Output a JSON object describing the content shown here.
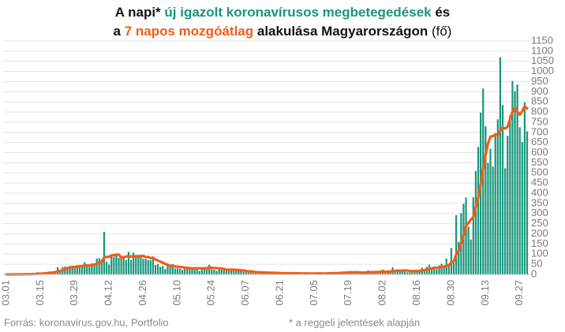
{
  "title_lines": [
    [
      {
        "text": "A napi* "
      },
      {
        "text": "új igazolt koronavírusos megbetegedések",
        "color": "#17967a"
      },
      {
        "text": " és"
      }
    ],
    [
      {
        "text": "a "
      },
      {
        "text": "7 napos mozgóátlag",
        "color": "#f25c19"
      },
      {
        "text": " alakulása Magyarországon"
      },
      {
        "text": " (fő)",
        "bold": false
      }
    ]
  ],
  "source": "Forrás: koronavirus.gov.hu, Portfolio",
  "footnote": "* a reggeli jelentések alapján",
  "chart_data": {
    "type": "bar-line",
    "categories": [
      "03.01",
      null,
      null,
      null,
      null,
      null,
      null,
      null,
      null,
      null,
      null,
      null,
      null,
      null,
      "03.15",
      null,
      null,
      null,
      null,
      null,
      null,
      null,
      null,
      null,
      null,
      null,
      null,
      null,
      "03.29",
      null,
      null,
      null,
      null,
      null,
      null,
      null,
      null,
      null,
      null,
      null,
      null,
      null,
      "04.12",
      null,
      null,
      null,
      null,
      null,
      null,
      null,
      null,
      null,
      null,
      null,
      null,
      null,
      "04.26",
      null,
      null,
      null,
      null,
      null,
      null,
      null,
      null,
      null,
      null,
      null,
      null,
      null,
      "05.10",
      null,
      null,
      null,
      null,
      null,
      null,
      null,
      null,
      null,
      null,
      null,
      null,
      null,
      "05.24",
      null,
      null,
      null,
      null,
      null,
      null,
      null,
      null,
      null,
      null,
      null,
      null,
      null,
      "06.07",
      null,
      null,
      null,
      null,
      null,
      null,
      null,
      null,
      null,
      null,
      null,
      null,
      null,
      "06.21",
      null,
      null,
      null,
      null,
      null,
      null,
      null,
      null,
      null,
      null,
      null,
      null,
      null,
      "07.05",
      null,
      null,
      null,
      null,
      null,
      null,
      null,
      null,
      null,
      null,
      null,
      null,
      null,
      "07.19",
      null,
      null,
      null,
      null,
      null,
      null,
      null,
      null,
      null,
      null,
      null,
      null,
      null,
      "08.02",
      null,
      null,
      null,
      null,
      null,
      null,
      null,
      null,
      null,
      null,
      null,
      null,
      null,
      "08.16",
      null,
      null,
      null,
      null,
      null,
      null,
      null,
      null,
      null,
      null,
      null,
      null,
      null,
      "08.30",
      null,
      null,
      null,
      null,
      null,
      null,
      null,
      null,
      null,
      null,
      null,
      null,
      null,
      "09.13",
      null,
      null,
      null,
      null,
      null,
      null,
      null,
      null,
      null,
      null,
      null,
      null,
      null,
      "09.27",
      null,
      null,
      null
    ],
    "series": [
      {
        "kind": "bar",
        "color": "#17967a",
        "values": [
          0,
          0,
          0,
          2,
          0,
          2,
          3,
          0,
          2,
          1,
          3,
          3,
          6,
          11,
          2,
          7,
          11,
          8,
          15,
          12,
          18,
          36,
          20,
          37,
          39,
          38,
          42,
          43,
          35,
          39,
          45,
          45,
          60,
          46,
          38,
          55,
          48,
          78,
          80,
          75,
          210,
          63,
          49,
          99,
          86,
          100,
          81,
          92,
          88,
          71,
          111,
          72,
          107,
          84,
          96,
          88,
          77,
          76,
          71,
          70,
          89,
          46,
          51,
          37,
          41,
          27,
          44,
          46,
          51,
          29,
          30,
          28,
          23,
          28,
          35,
          38,
          30,
          26,
          35,
          18,
          32,
          36,
          37,
          48,
          25,
          23,
          18,
          26,
          26,
          24,
          18,
          25,
          27,
          17,
          20,
          19,
          16,
          12,
          11,
          15,
          12,
          10,
          7,
          9,
          11,
          6,
          10,
          8,
          8,
          7,
          4,
          6,
          4,
          5,
          6,
          7,
          7,
          6,
          3,
          3,
          4,
          5,
          6,
          7,
          4,
          3,
          3,
          6,
          7,
          4,
          5,
          8,
          6,
          4,
          10,
          8,
          8,
          12,
          13,
          10,
          12,
          12,
          5,
          12,
          8,
          10,
          5,
          16,
          20,
          8,
          11,
          11,
          13,
          14,
          24,
          9,
          16,
          10,
          35,
          13,
          25,
          18,
          17,
          20,
          10,
          11,
          19,
          22,
          23,
          20,
          33,
          19,
          37,
          48,
          25,
          40,
          24,
          44,
          53,
          33,
          78,
          50,
          130,
          60,
          292,
          160,
          302,
          348,
          379,
          236,
          172,
          380,
          510,
          628,
          797,
          916,
          730,
          550,
          620,
          531,
          690,
          764,
          1070,
          835,
          523,
          683,
          782,
          953,
          903,
          936,
          725,
          652,
          848,
          705
        ]
      },
      {
        "kind": "line",
        "color": "#f25c19",
        "values": [
          0,
          0,
          0,
          0.5,
          0.4,
          0.7,
          1,
          1,
          1.3,
          1.4,
          1.6,
          2,
          2.6,
          3.7,
          4,
          4.7,
          6.1,
          6.9,
          8.6,
          9.4,
          10.4,
          15.3,
          17.1,
          20.9,
          25.3,
          28.6,
          32.9,
          36.4,
          36.3,
          39,
          40.1,
          41,
          44.1,
          44.7,
          44,
          46.9,
          48.1,
          52.9,
          57.9,
          60,
          83.4,
          87,
          86.1,
          93.4,
          94.6,
          97.4,
          98.3,
          81.4,
          85,
          88.1,
          89.9,
          87.9,
          88.9,
          89.3,
          89.9,
          89.9,
          90.7,
          85.7,
          85.6,
          80.3,
          81,
          73.9,
          68.6,
          62.9,
          57.9,
          51.6,
          47.9,
          41.7,
          42.4,
          39.3,
          38.3,
          36.4,
          35.9,
          33.6,
          32,
          30.1,
          30.3,
          29.7,
          30.7,
          30,
          30.6,
          30.7,
          30.6,
          33.1,
          33,
          31.3,
          31.3,
          30.4,
          29,
          27.1,
          22.9,
          22.9,
          23.4,
          23.3,
          22.4,
          21.4,
          20.3,
          19.4,
          17.4,
          15.7,
          15,
          13.6,
          11.9,
          10.9,
          10.7,
          10,
          9.3,
          8.7,
          8.4,
          8.4,
          7.7,
          7,
          6.7,
          6,
          5.7,
          5.6,
          5.6,
          5.9,
          5.4,
          5.3,
          5.1,
          5,
          4.9,
          4.9,
          4.6,
          4.6,
          4.6,
          4.9,
          5.1,
          4.9,
          4.6,
          5.1,
          5.6,
          5.7,
          6.3,
          6.4,
          7,
          8,
          8.7,
          9.3,
          10.4,
          10.7,
          10.3,
          10.9,
          10.3,
          9.9,
          9.1,
          9.7,
          10.9,
          11.3,
          11.1,
          11.6,
          12,
          13.3,
          14.4,
          12.9,
          14,
          13.9,
          17.3,
          17.3,
          18.9,
          18,
          19.1,
          19.7,
          19.7,
          16.3,
          17.1,
          16.7,
          17.4,
          17.9,
          19.7,
          21,
          24.7,
          28.9,
          29.3,
          31.7,
          32.3,
          33.9,
          38.7,
          38.1,
          42.4,
          46,
          58.9,
          64,
          99.4,
          114.7,
          153.1,
          191.7,
          238.7,
          253.9,
          269.9,
          282.4,
          332.4,
          379,
          443.1,
          519.9,
          590.4,
          644.4,
          678.7,
          681.7,
          690.6,
          685.9,
          707.9,
          722.9,
          719,
          728,
          763.9,
          801.4,
          821.3,
          802.1,
          786.4,
          804.9,
          828.4,
          817.4
        ]
      }
    ],
    "ylim": [
      0,
      1150
    ],
    "yticks": [
      0,
      50,
      100,
      150,
      200,
      250,
      300,
      350,
      400,
      450,
      500,
      550,
      600,
      650,
      700,
      750,
      800,
      850,
      900,
      950,
      1000,
      1050,
      1100,
      1150
    ],
    "grid": true,
    "y_axis_side": "right"
  }
}
